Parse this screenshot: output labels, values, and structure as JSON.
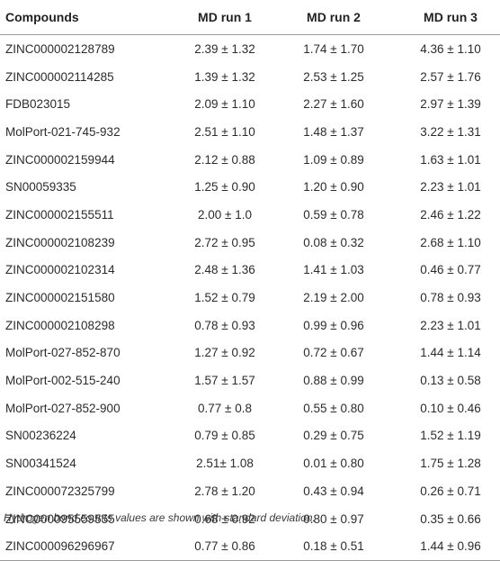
{
  "table": {
    "headers": [
      "Compounds",
      "MD run 1",
      "MD run 2",
      "MD run 3"
    ],
    "rows": [
      [
        "ZINC000002128789",
        "2.39 ± 1.32",
        "1.74 ± 1.70",
        "4.36 ± 1.10"
      ],
      [
        "ZINC000002114285",
        "1.39 ± 1.32",
        "2.53 ± 1.25",
        "2.57 ± 1.76"
      ],
      [
        "FDB023015",
        "2.09 ± 1.10",
        "2.27 ± 1.60",
        "2.97 ± 1.39"
      ],
      [
        "MolPort-021-745-932",
        "2.51 ± 1.10",
        "1.48 ± 1.37",
        "3.22 ± 1.31"
      ],
      [
        "ZINC000002159944",
        "2.12 ± 0.88",
        "1.09 ± 0.89",
        "1.63 ± 1.01"
      ],
      [
        "SN00059335",
        "1.25 ± 0.90",
        "1.20 ± 0.90",
        "2.23 ± 1.01"
      ],
      [
        "ZINC000002155511",
        "2.00 ± 1.0",
        "0.59 ± 0.78",
        "2.46 ± 1.22"
      ],
      [
        "ZINC000002108239",
        "2.72 ± 0.95",
        "0.08 ± 0.32",
        "2.68 ± 1.10"
      ],
      [
        "ZINC000002102314",
        "2.48 ± 1.36",
        "1.41 ± 1.03",
        "0.46 ± 0.77"
      ],
      [
        "ZINC000002151580",
        "1.52 ± 0.79",
        "2.19 ± 2.00",
        "0.78 ± 0.93"
      ],
      [
        "ZINC000002108298",
        "0.78 ± 0.93",
        "0.99 ± 0.96",
        "2.23 ± 1.01"
      ],
      [
        "MolPort-027-852-870",
        "1.27 ± 0.92",
        "0.72 ± 0.67",
        "1.44 ± 1.14"
      ],
      [
        "MolPort-002-515-240",
        "1.57 ± 1.57",
        "0.88 ± 0.99",
        "0.13 ± 0.58"
      ],
      [
        "MolPort-027-852-900",
        "0.77 ± 0.8",
        "0.55 ± 0.80",
        "0.10 ± 0.46"
      ],
      [
        "SN00236224",
        "0.79 ± 0.85",
        "0.29 ± 0.75",
        "1.52 ± 1.19"
      ],
      [
        "SN00341524",
        "2.51± 1.08",
        "0.01 ± 0.80",
        "1.75 ± 1.28"
      ],
      [
        "ZINC000072325799",
        "2.78 ± 1.20",
        "0.43 ± 0.94",
        "0.26 ± 0.71"
      ],
      [
        "ZINC000095559555",
        "0.68 ± 0.92",
        "0.80 ± 0.97",
        "0.35 ± 0.66"
      ],
      [
        "ZINC000096296967",
        "0.77 ± 0.86",
        "0.18 ± 0.51",
        "1.44 ± 0.96"
      ]
    ]
  },
  "footnote": "Hydrogen bond counts values are shown with standard deviation."
}
